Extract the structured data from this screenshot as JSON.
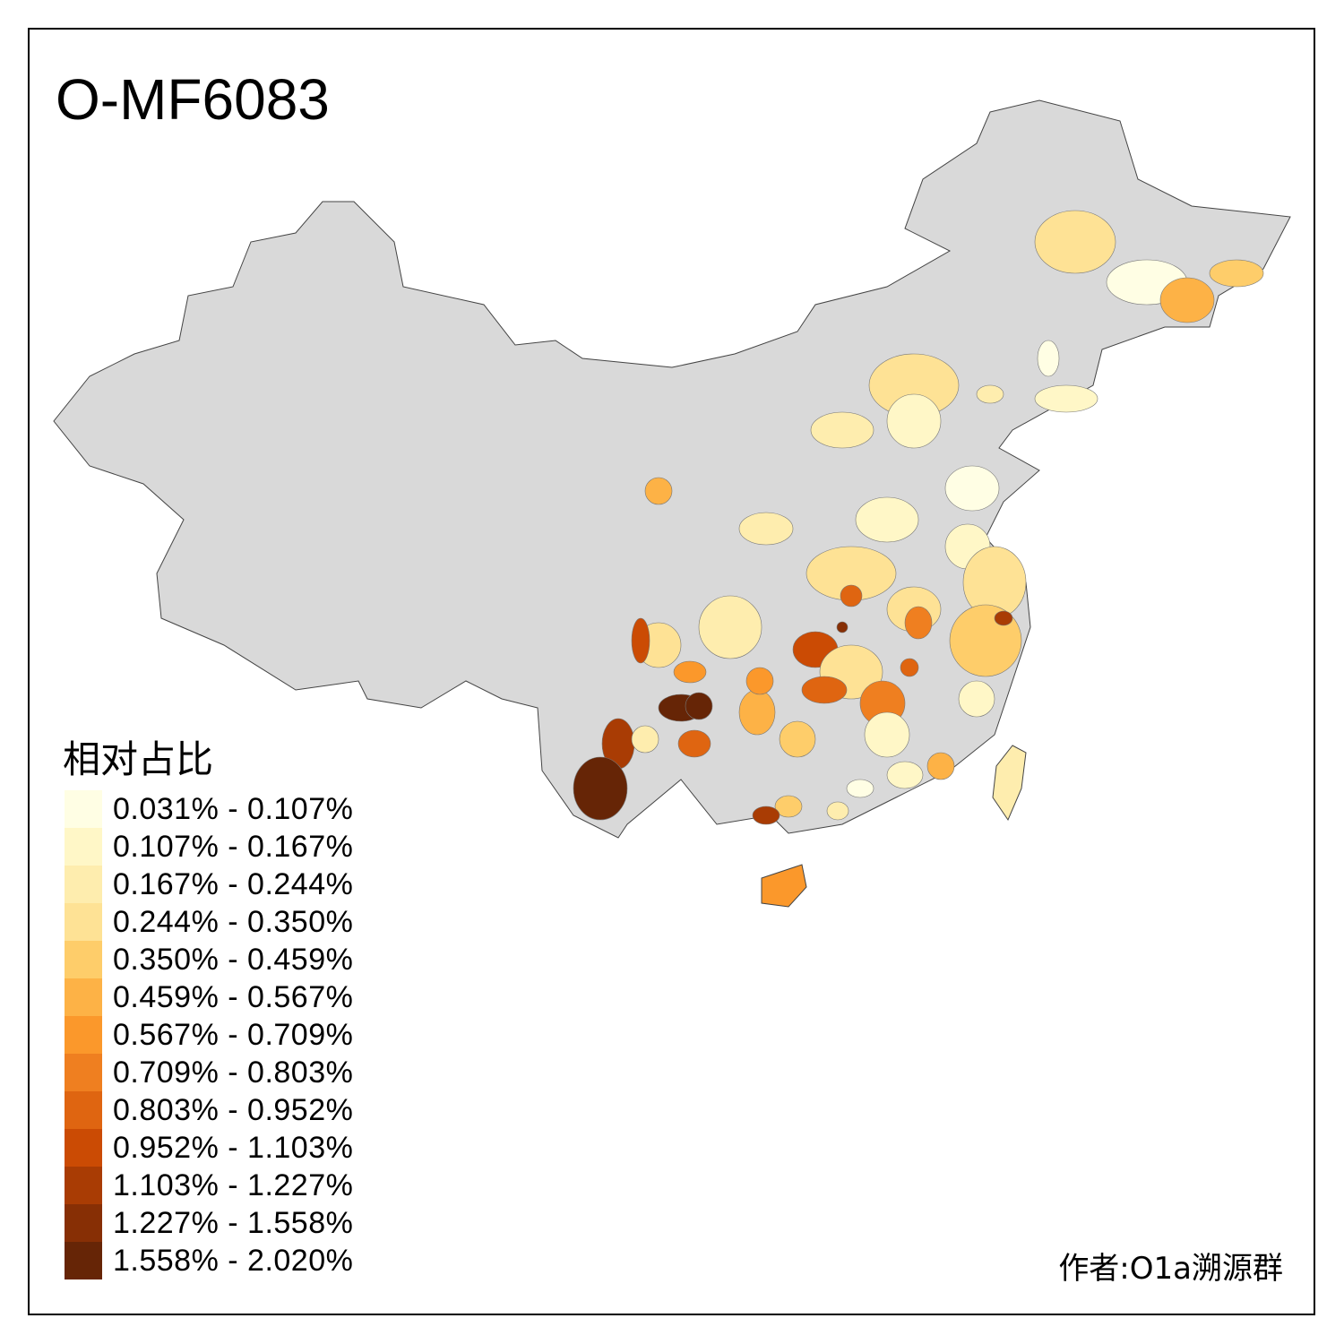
{
  "chart_data": {
    "type": "choropleth",
    "title": "O-MF6083",
    "legend_title": "相对占比",
    "credit": "作者:O1a溯源群",
    "no_data_color": "#D9D9D9",
    "bins": [
      {
        "label": "0.031% - 0.107%",
        "color": "#FFFEE4"
      },
      {
        "label": "0.107% - 0.167%",
        "color": "#FFF7C7"
      },
      {
        "label": "0.167% - 0.244%",
        "color": "#FEEDAE"
      },
      {
        "label": "0.244% - 0.350%",
        "color": "#FEE295"
      },
      {
        "label": "0.350% - 0.459%",
        "color": "#FECD6A"
      },
      {
        "label": "0.459% - 0.567%",
        "color": "#FDB246"
      },
      {
        "label": "0.567% - 0.709%",
        "color": "#FB982B"
      },
      {
        "label": "0.709% - 0.803%",
        "color": "#EF7F20"
      },
      {
        "label": "0.803% - 0.952%",
        "color": "#DF6511"
      },
      {
        "label": "0.952% - 1.103%",
        "color": "#CB4B04"
      },
      {
        "label": "1.103% - 1.227%",
        "color": "#A93C04"
      },
      {
        "label": "1.227% - 1.558%",
        "color": "#872F05"
      },
      {
        "label": "1.558% - 2.020%",
        "color": "#662506"
      }
    ]
  }
}
